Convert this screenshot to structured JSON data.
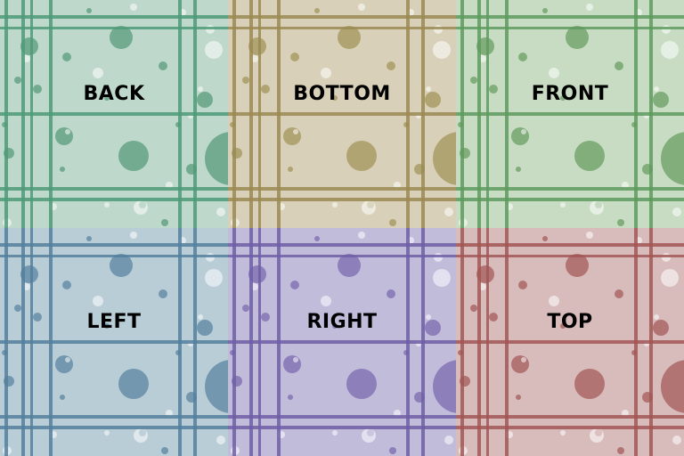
{
  "faces": [
    {
      "id": "back",
      "label": "BACK",
      "bg": "#bed8cc",
      "line": "#4f9a78",
      "dot": "#6aa68a"
    },
    {
      "id": "bottom",
      "label": "BOTTOM",
      "bg": "#d8d0b8",
      "line": "#9a8a52",
      "dot": "#ad9e6c"
    },
    {
      "id": "front",
      "label": "FRONT",
      "bg": "#c7dcc2",
      "line": "#5e9a5e",
      "dot": "#7aa873"
    },
    {
      "id": "left",
      "label": "LEFT",
      "bg": "#b9cdd6",
      "line": "#537f9e",
      "dot": "#6a91aa"
    },
    {
      "id": "right",
      "label": "RIGHT",
      "bg": "#c2bcdb",
      "line": "#6e5ea6",
      "dot": "#8778b6"
    },
    {
      "id": "top",
      "label": "TOP",
      "bg": "#d8bcbc",
      "line": "#a25656",
      "dot": "#ae6a6a"
    }
  ]
}
